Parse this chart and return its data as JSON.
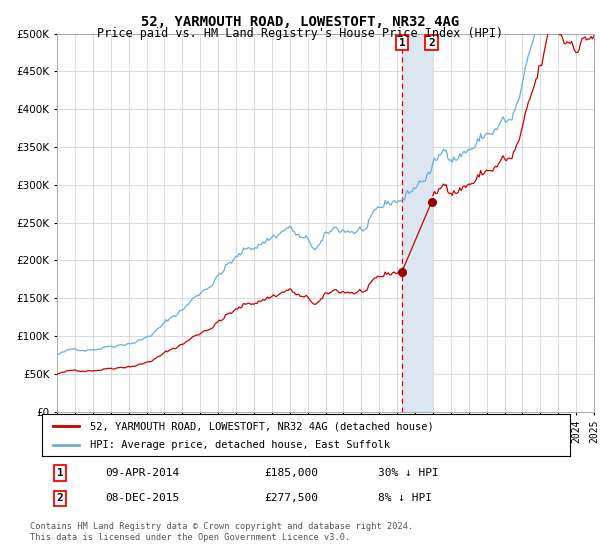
{
  "title": "52, YARMOUTH ROAD, LOWESTOFT, NR32 4AG",
  "subtitle": "Price paid vs. HM Land Registry's House Price Index (HPI)",
  "legend_property": "52, YARMOUTH ROAD, LOWESTOFT, NR32 4AG (detached house)",
  "legend_hpi": "HPI: Average price, detached house, East Suffolk",
  "footer": "Contains HM Land Registry data © Crown copyright and database right 2024.\nThis data is licensed under the Open Government Licence v3.0.",
  "transaction1_date": "09-APR-2014",
  "transaction1_price": 185000,
  "transaction1_hpi_diff": "30% ↓ HPI",
  "transaction2_date": "08-DEC-2015",
  "transaction2_price": 277500,
  "transaction2_hpi_diff": "8% ↓ HPI",
  "transaction1_year": 2014.27,
  "transaction2_year": 2015.93,
  "ylim_max": 500000,
  "ylim_min": 0,
  "xlim_min": 1995,
  "xlim_max": 2025,
  "hpi_color": "#6baed6",
  "property_color": "#cc0000",
  "marker_color": "#990000",
  "highlight_color": "#dce6f1",
  "dashed_line_color": "#dd0000",
  "background_color": "#ffffff",
  "grid_color": "#cccccc"
}
